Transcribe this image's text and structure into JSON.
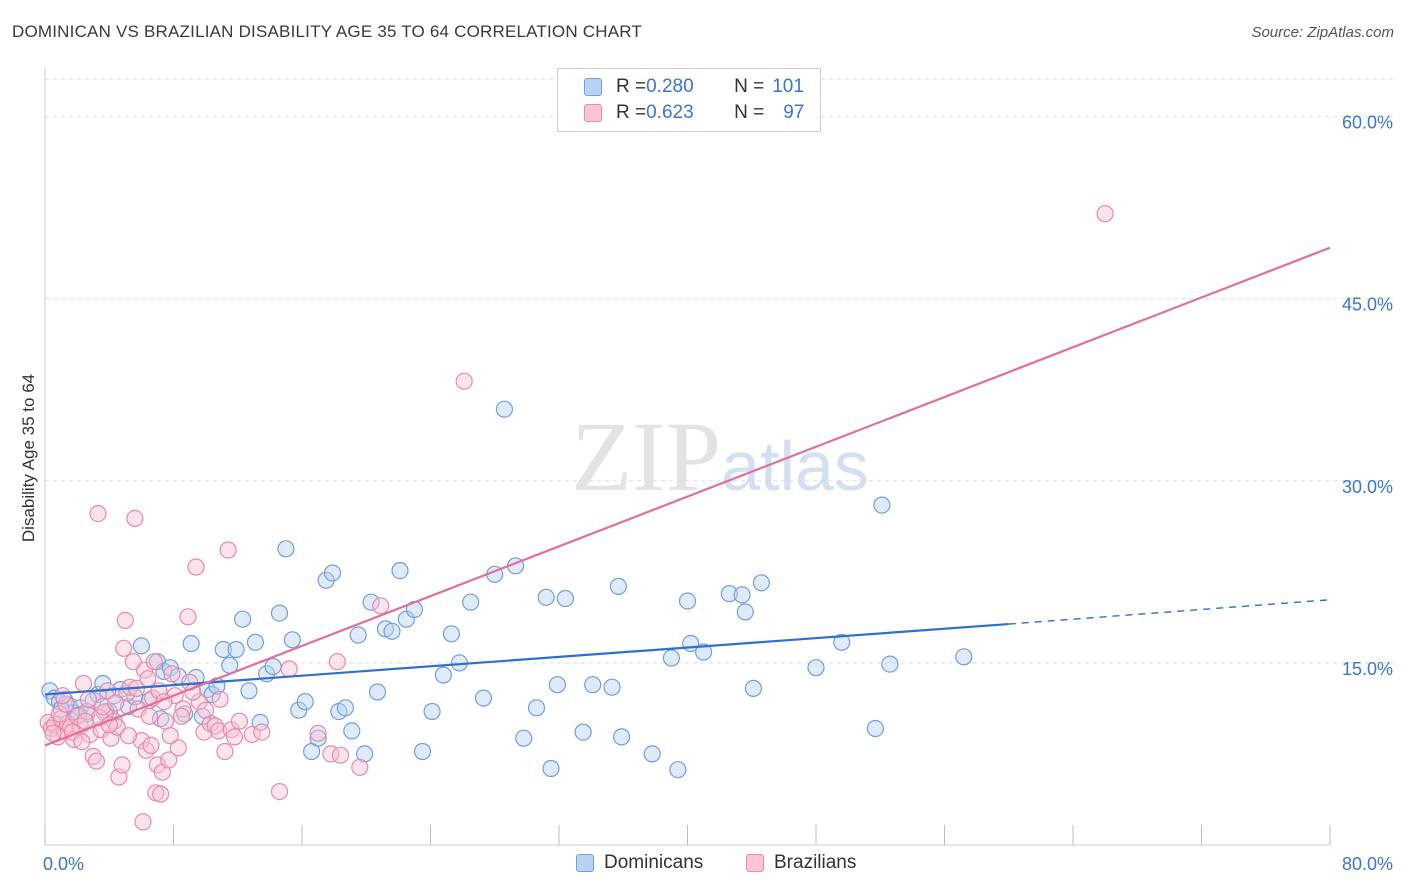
{
  "chart_data": {
    "type": "scatter",
    "title": "DOMINICAN VS BRAZILIAN DISABILITY AGE 35 TO 64 CORRELATION CHART",
    "source": "Source: ZipAtlas.com",
    "ylabel": "Disability Age 35 to 64",
    "xlabel": "",
    "xlim": [
      0,
      80
    ],
    "ylim": [
      0,
      64
    ],
    "x_tick_labels": [
      "0.0%",
      "80.0%"
    ],
    "y_ticks": [
      15,
      30,
      45,
      60
    ],
    "y_tick_labels": [
      "15.0%",
      "30.0%",
      "45.0%",
      "60.0%"
    ],
    "watermark": "ZIPatlas",
    "legend": [
      {
        "name": "Dominicans",
        "r_label": "R = ",
        "r": "0.280",
        "n_label": "N = ",
        "n": "101"
      },
      {
        "name": "Brazilians",
        "r_label": "R = ",
        "r": "0.623",
        "n_label": "N = ",
        "n": "97"
      }
    ],
    "colors": {
      "dominicans": "#6f9fe0",
      "dominicans_fill": "#b9d2f4",
      "brazilians": "#e88aa8",
      "brazilians_fill": "#f9c4d4",
      "dominicans_line": "#2f6fd0",
      "brazilians_line": "#e2709a",
      "axis_text": "#3b74d4"
    },
    "series": [
      {
        "name": "Dominicans",
        "trend": {
          "x": [
            0,
            60
          ],
          "y": [
            12.4,
            18.2
          ],
          "dashed_to": [
            80,
            20.2
          ]
        },
        "points": [
          [
            0.3,
            12.7
          ],
          [
            0.6,
            12.1
          ],
          [
            0.9,
            11.8
          ],
          [
            1.2,
            12.0
          ],
          [
            1.5,
            11.5
          ],
          [
            1.8,
            10.9
          ],
          [
            2.2,
            11.3
          ],
          [
            2.6,
            10.8
          ],
          [
            3.0,
            11.9
          ],
          [
            3.3,
            12.4
          ],
          [
            3.6,
            13.3
          ],
          [
            4.0,
            11.0
          ],
          [
            4.3,
            12.3
          ],
          [
            4.7,
            12.8
          ],
          [
            5.2,
            11.4
          ],
          [
            5.6,
            12.2
          ],
          [
            6.0,
            16.4
          ],
          [
            6.5,
            11.9
          ],
          [
            7.0,
            15.1
          ],
          [
            7.4,
            14.3
          ],
          [
            7.8,
            14.6
          ],
          [
            8.3,
            13.9
          ],
          [
            8.7,
            10.8
          ],
          [
            9.1,
            16.6
          ],
          [
            9.4,
            13.8
          ],
          [
            9.8,
            10.6
          ],
          [
            10.1,
            12.8
          ],
          [
            10.4,
            12.4
          ],
          [
            10.7,
            13.1
          ],
          [
            11.1,
            16.1
          ],
          [
            11.5,
            14.8
          ],
          [
            11.9,
            16.1
          ],
          [
            12.3,
            18.6
          ],
          [
            12.7,
            12.7
          ],
          [
            13.1,
            16.7
          ],
          [
            13.4,
            10.1
          ],
          [
            13.8,
            14.1
          ],
          [
            14.2,
            14.7
          ],
          [
            14.6,
            19.1
          ],
          [
            15.0,
            24.4
          ],
          [
            15.4,
            16.9
          ],
          [
            15.8,
            11.1
          ],
          [
            16.2,
            11.8
          ],
          [
            16.6,
            7.7
          ],
          [
            17.0,
            8.8
          ],
          [
            17.5,
            21.8
          ],
          [
            17.9,
            22.4
          ],
          [
            18.3,
            11.0
          ],
          [
            18.7,
            11.3
          ],
          [
            19.1,
            9.4
          ],
          [
            19.5,
            17.3
          ],
          [
            19.9,
            7.5
          ],
          [
            20.3,
            20.0
          ],
          [
            20.7,
            12.6
          ],
          [
            21.2,
            17.8
          ],
          [
            21.6,
            17.6
          ],
          [
            22.1,
            22.6
          ],
          [
            22.5,
            18.6
          ],
          [
            23.0,
            19.4
          ],
          [
            23.5,
            7.7
          ],
          [
            24.1,
            11.0
          ],
          [
            24.8,
            14.0
          ],
          [
            25.3,
            17.4
          ],
          [
            25.8,
            15.0
          ],
          [
            26.5,
            20.0
          ],
          [
            27.3,
            12.1
          ],
          [
            28.0,
            22.3
          ],
          [
            28.6,
            35.9
          ],
          [
            29.3,
            23.0
          ],
          [
            29.8,
            8.8
          ],
          [
            30.6,
            11.3
          ],
          [
            31.2,
            20.4
          ],
          [
            31.5,
            6.3
          ],
          [
            31.9,
            13.2
          ],
          [
            32.4,
            20.3
          ],
          [
            33.5,
            9.3
          ],
          [
            34.1,
            13.2
          ],
          [
            35.3,
            13.0
          ],
          [
            35.7,
            21.3
          ],
          [
            35.9,
            8.9
          ],
          [
            37.8,
            7.5
          ],
          [
            39.0,
            15.4
          ],
          [
            39.4,
            6.2
          ],
          [
            40.0,
            20.1
          ],
          [
            40.2,
            16.6
          ],
          [
            41.0,
            15.9
          ],
          [
            42.6,
            20.7
          ],
          [
            43.4,
            20.6
          ],
          [
            43.6,
            19.2
          ],
          [
            44.1,
            12.9
          ],
          [
            44.6,
            21.6
          ],
          [
            48.0,
            14.6
          ],
          [
            49.6,
            16.7
          ],
          [
            51.7,
            9.6
          ],
          [
            52.1,
            28.0
          ],
          [
            52.6,
            14.9
          ],
          [
            57.2,
            15.5
          ],
          [
            3.8,
            11.0
          ],
          [
            7.2,
            10.4
          ],
          [
            2.1,
            10.7
          ],
          [
            1.0,
            11.2
          ]
        ]
      },
      {
        "name": "Brazilians",
        "trend": {
          "x": [
            0,
            80
          ],
          "y": [
            8.2,
            49.2
          ]
        },
        "points": [
          [
            0.2,
            10.1
          ],
          [
            0.4,
            9.6
          ],
          [
            0.6,
            9.9
          ],
          [
            0.8,
            8.9
          ],
          [
            1.0,
            10.4
          ],
          [
            1.2,
            9.4
          ],
          [
            1.4,
            10.0
          ],
          [
            1.6,
            9.7
          ],
          [
            1.8,
            8.7
          ],
          [
            2.0,
            10.6
          ],
          [
            2.2,
            9.8
          ],
          [
            2.4,
            13.3
          ],
          [
            2.6,
            11.0
          ],
          [
            2.8,
            9.1
          ],
          [
            3.0,
            7.3
          ],
          [
            3.2,
            6.9
          ],
          [
            3.3,
            27.3
          ],
          [
            3.5,
            9.5
          ],
          [
            3.7,
            10.9
          ],
          [
            3.9,
            12.7
          ],
          [
            4.1,
            8.8
          ],
          [
            4.3,
            10.2
          ],
          [
            4.5,
            9.7
          ],
          [
            4.6,
            5.6
          ],
          [
            4.8,
            6.6
          ],
          [
            4.9,
            16.2
          ],
          [
            5.0,
            18.5
          ],
          [
            5.1,
            12.5
          ],
          [
            5.3,
            13.0
          ],
          [
            5.5,
            15.1
          ],
          [
            5.6,
            26.9
          ],
          [
            5.8,
            11.2
          ],
          [
            6.0,
            8.6
          ],
          [
            6.1,
            1.9
          ],
          [
            6.2,
            14.4
          ],
          [
            6.3,
            7.8
          ],
          [
            6.5,
            10.6
          ],
          [
            6.7,
            12.1
          ],
          [
            6.8,
            15.1
          ],
          [
            6.9,
            4.3
          ],
          [
            7.0,
            6.6
          ],
          [
            7.1,
            12.7
          ],
          [
            7.2,
            4.2
          ],
          [
            7.3,
            6.0
          ],
          [
            7.5,
            10.2
          ],
          [
            7.7,
            7.0
          ],
          [
            7.9,
            14.1
          ],
          [
            8.1,
            12.3
          ],
          [
            8.3,
            8.0
          ],
          [
            8.6,
            11.2
          ],
          [
            8.9,
            18.8
          ],
          [
            9.0,
            13.4
          ],
          [
            9.4,
            22.9
          ],
          [
            9.6,
            11.8
          ],
          [
            9.9,
            9.3
          ],
          [
            10.3,
            10.0
          ],
          [
            10.6,
            9.8
          ],
          [
            10.8,
            9.4
          ],
          [
            11.2,
            7.7
          ],
          [
            11.4,
            24.3
          ],
          [
            11.6,
            9.5
          ],
          [
            12.1,
            10.2
          ],
          [
            12.9,
            9.1
          ],
          [
            13.5,
            9.3
          ],
          [
            14.6,
            4.4
          ],
          [
            15.2,
            14.5
          ],
          [
            17.0,
            9.2
          ],
          [
            17.8,
            7.5
          ],
          [
            18.2,
            15.1
          ],
          [
            18.4,
            7.4
          ],
          [
            19.6,
            6.4
          ],
          [
            20.9,
            19.7
          ],
          [
            26.1,
            38.2
          ],
          [
            66.0,
            52.0
          ],
          [
            0.5,
            9.2
          ],
          [
            0.9,
            10.8
          ],
          [
            1.3,
            11.6
          ],
          [
            1.7,
            9.3
          ],
          [
            2.3,
            8.5
          ],
          [
            2.7,
            12.0
          ],
          [
            3.4,
            10.5
          ],
          [
            3.6,
            11.4
          ],
          [
            4.0,
            9.9
          ],
          [
            4.4,
            11.7
          ],
          [
            5.2,
            9.0
          ],
          [
            5.7,
            12.9
          ],
          [
            6.4,
            13.7
          ],
          [
            6.6,
            8.2
          ],
          [
            7.4,
            11.8
          ],
          [
            7.8,
            9.0
          ],
          [
            8.5,
            10.6
          ],
          [
            9.2,
            12.6
          ],
          [
            10.0,
            11.1
          ],
          [
            10.9,
            12.0
          ],
          [
            11.8,
            8.9
          ],
          [
            2.5,
            10.2
          ],
          [
            1.1,
            12.3
          ]
        ]
      }
    ]
  }
}
